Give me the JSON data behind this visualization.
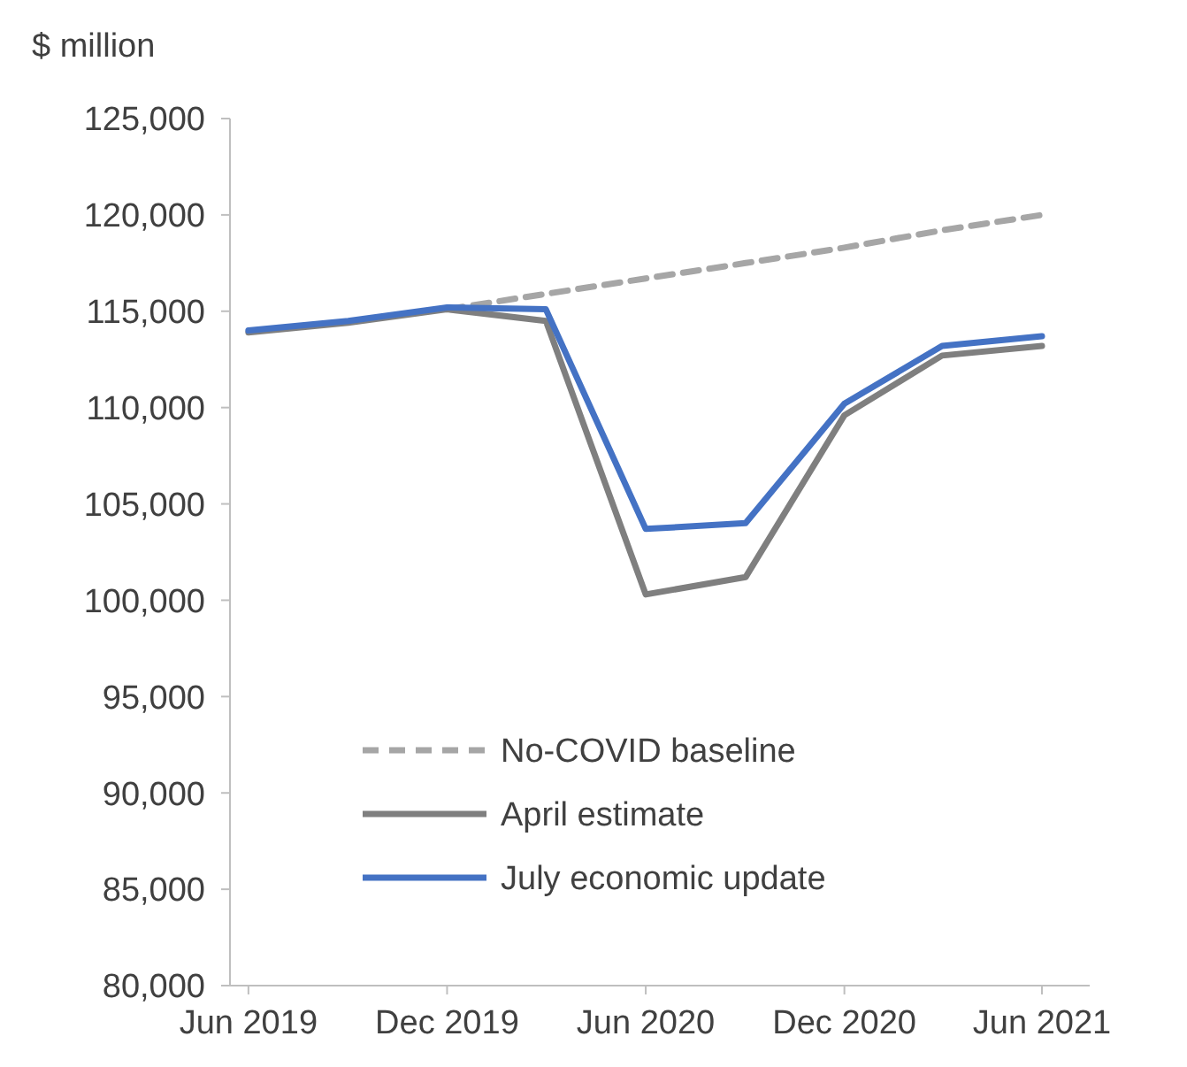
{
  "chart_data": {
    "type": "line",
    "ylabel": "$ million",
    "x": [
      "2019-06",
      "2019-09",
      "2019-12",
      "2020-03",
      "2020-06",
      "2020-09",
      "2020-12",
      "2021-03",
      "2021-06"
    ],
    "series": [
      {
        "name": "No-COVID baseline",
        "color": "#a6a6a6",
        "line_style": "dashed",
        "values": [
          null,
          null,
          115100,
          115900,
          116700,
          117500,
          118300,
          119200,
          120000
        ]
      },
      {
        "name": "April estimate",
        "color": "#7f7f7f",
        "values": [
          113900,
          114400,
          115100,
          114500,
          100300,
          101200,
          109600,
          112700,
          113200
        ]
      },
      {
        "name": "July economic update",
        "color": "#4472c4",
        "values": [
          114000,
          114500,
          115200,
          115100,
          103700,
          104000,
          110200,
          113200,
          113700
        ]
      }
    ],
    "xlim": [
      "2019-05-15",
      "2021-07-15"
    ],
    "xticks": [
      {
        "value": "2019-06",
        "label": "Jun 2019"
      },
      {
        "value": "2019-12",
        "label": "Dec 2019"
      },
      {
        "value": "2020-06",
        "label": "Jun 2020"
      },
      {
        "value": "2020-12",
        "label": "Dec 2020"
      },
      {
        "value": "2021-06",
        "label": "Jun 2021"
      }
    ],
    "ylim": [
      80000,
      125000
    ],
    "yticks": [
      {
        "value": 80000,
        "label": "80,000"
      },
      {
        "value": 85000,
        "label": "85,000"
      },
      {
        "value": 90000,
        "label": "90,000"
      },
      {
        "value": 95000,
        "label": "95,000"
      },
      {
        "value": 100000,
        "label": "100,000"
      },
      {
        "value": 105000,
        "label": "105,000"
      },
      {
        "value": 110000,
        "label": "110,000"
      },
      {
        "value": 115000,
        "label": "115,000"
      },
      {
        "value": 120000,
        "label": "120,000"
      },
      {
        "value": 125000,
        "label": "125,000"
      }
    ],
    "grid": false,
    "legend": "bottom",
    "marker": "none",
    "line_style": "solid"
  }
}
